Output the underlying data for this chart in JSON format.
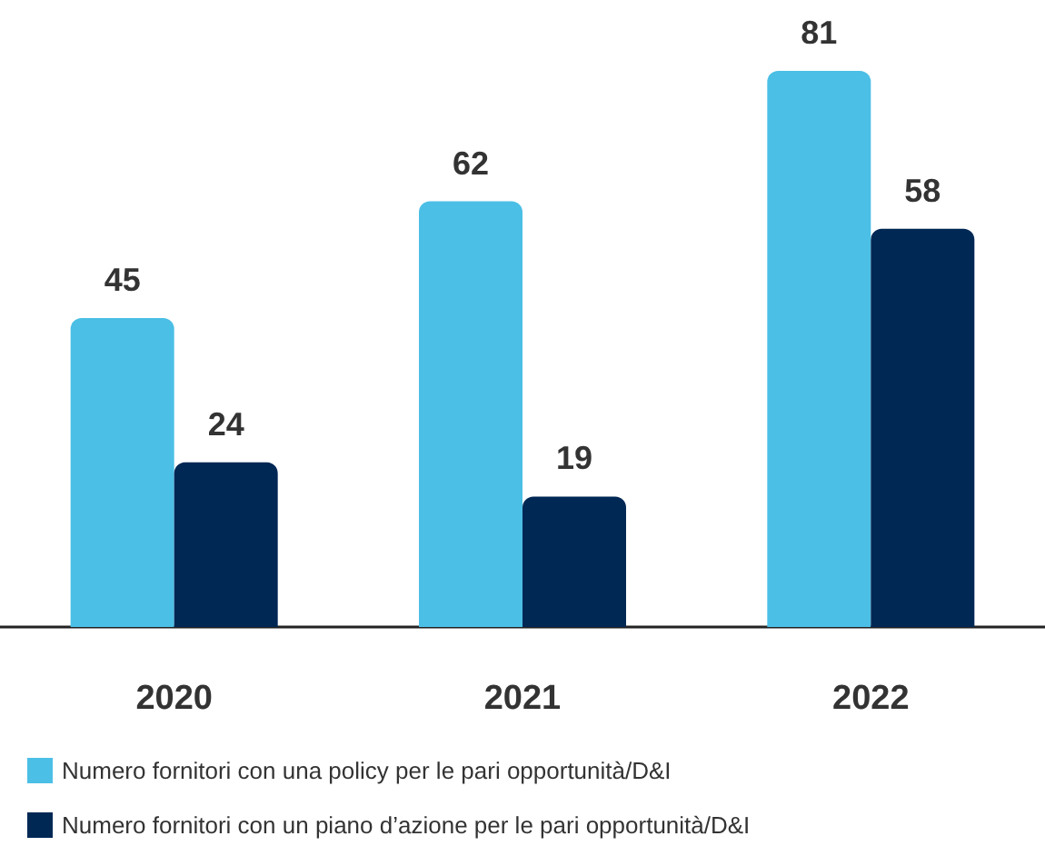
{
  "chart_data": {
    "type": "bar",
    "categories": [
      "2020",
      "2021",
      "2022"
    ],
    "series": [
      {
        "name": "Numero fornitori con una policy per le pari opportunità/D&I",
        "color": "#4bbfe6",
        "values": [
          45,
          62,
          81
        ]
      },
      {
        "name": "Numero fornitori con un piano d’azione per le pari opportunità/D&I",
        "color": "#002855",
        "values": [
          24,
          19,
          58
        ]
      }
    ],
    "data_labels": true,
    "legend": "bottom left"
  }
}
